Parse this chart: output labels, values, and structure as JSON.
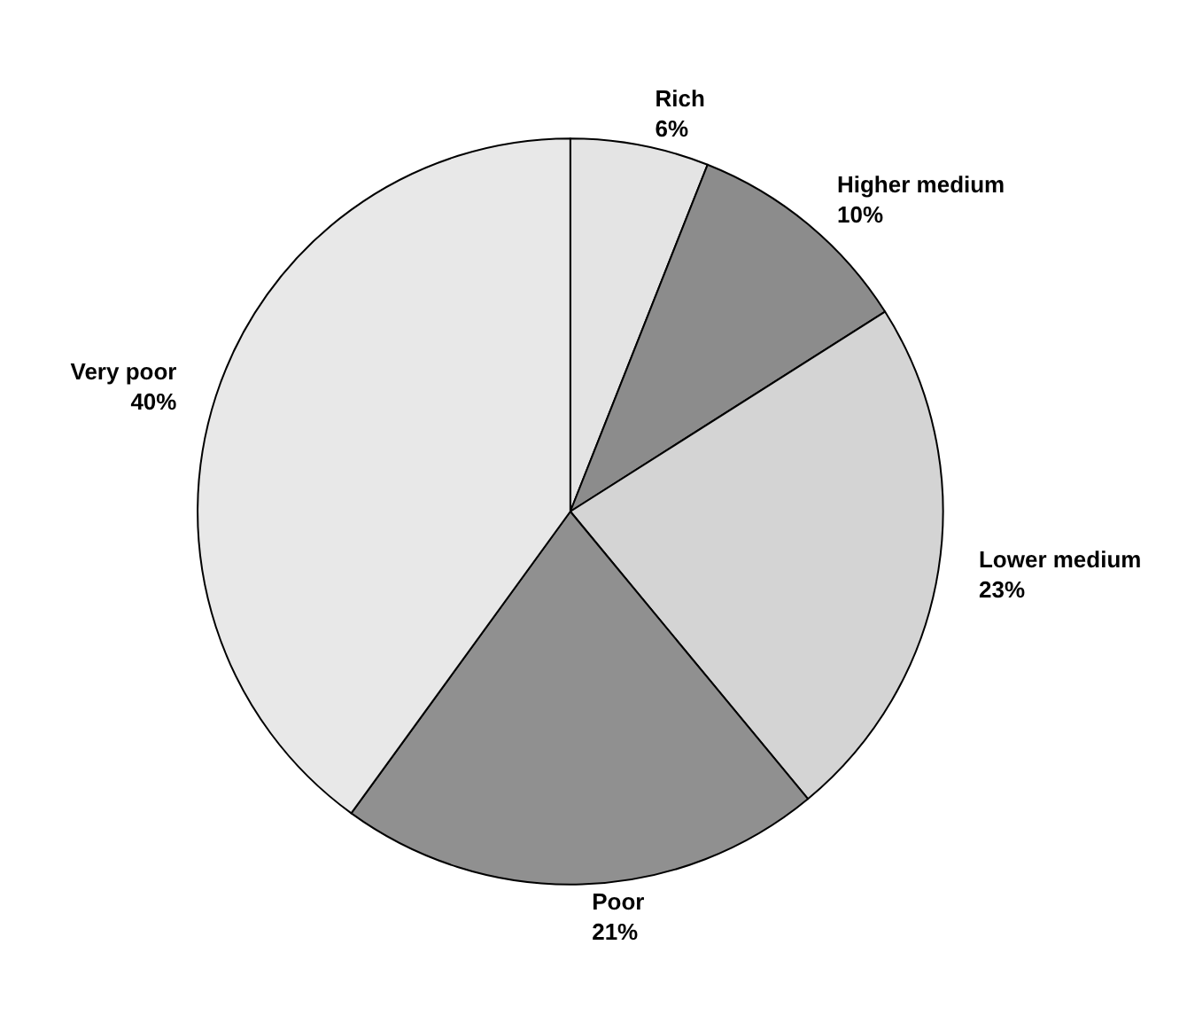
{
  "chart_data": {
    "type": "pie",
    "categories": [
      "Rich",
      "Higher medium",
      "Lower medium",
      "Poor",
      "Very poor"
    ],
    "values": [
      6,
      10,
      23,
      21,
      40
    ],
    "value_labels": [
      "6%",
      "10%",
      "23%",
      "21%",
      "40%"
    ],
    "colors": [
      "#e4e4e4",
      "#8c8c8c",
      "#d4d4d4",
      "#909090",
      "#e8e8e8"
    ],
    "legend": false
  }
}
